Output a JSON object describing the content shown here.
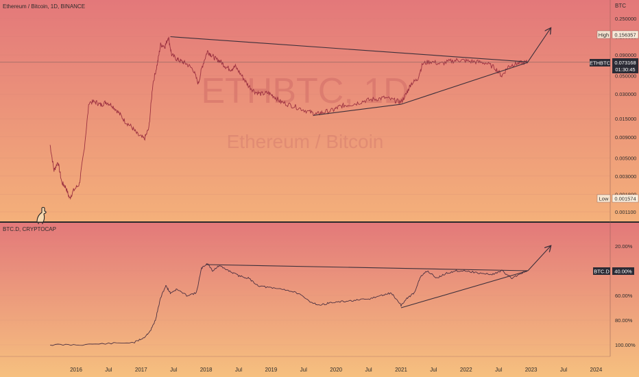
{
  "colors": {
    "top_bg_top": "#e3787a",
    "top_bg_bottom": "#f4b07a",
    "bottom_bg_top": "#e3797a",
    "bottom_bg_bottom": "#f6c07f",
    "price_line": "#9b3040",
    "index_line": "#4b3040",
    "trend_line": "#3b2f3a",
    "label_dark": "#2b2b35",
    "label_text": "#ffffff",
    "axis_text": "#2b2b2b",
    "separator": "#2a2a2a"
  },
  "top_panel": {
    "header": "Ethereum / Bitcoin, 1D, BINANCE",
    "axis_unit": "BTC",
    "watermark_symbol": "ETHBTC, 1D",
    "watermark_name": "Ethereum / Bitcoin",
    "high_tag": "High",
    "high_value": "0.156357",
    "low_tag": "Low",
    "low_value": "0.001574",
    "symbol_tag": "ETHBTC",
    "last_price": "0.073168",
    "countdown": "01:30:45",
    "mascot_icon": "dino-icon"
  },
  "bottom_panel": {
    "header": "BTC.D, CRYPTOCAP",
    "symbol_tag": "BTC.D",
    "last_value": "40.00%"
  },
  "chart_data": [
    {
      "type": "line",
      "title": "Ethereum / Bitcoin, 1D, BINANCE",
      "ylabel": "BTC",
      "y_scale": "log",
      "y_ticks": [
        "0.250000",
        "0.150000",
        "0.090000",
        "0.050000",
        "0.030000",
        "0.015000",
        "0.009000",
        "0.005000",
        "0.003000",
        "0.001800",
        "0.001100"
      ],
      "x_ticks": [
        "2016",
        "Jul",
        "2017",
        "Jul",
        "2018",
        "Jul",
        "2019",
        "Jul",
        "2020",
        "Jul",
        "2021",
        "Jul",
        "2022",
        "Jul",
        "2023",
        "Jul",
        "2024"
      ],
      "x": [
        2015.6,
        2015.66,
        2015.72,
        2015.78,
        2015.84,
        2015.9,
        2015.96,
        2016.05,
        2016.12,
        2016.2,
        2016.3,
        2016.38,
        2016.46,
        2016.55,
        2016.65,
        2016.75,
        2016.85,
        2016.95,
        2017.05,
        2017.12,
        2017.18,
        2017.25,
        2017.3,
        2017.37,
        2017.42,
        2017.47,
        2017.55,
        2017.62,
        2017.7,
        2017.8,
        2017.88,
        2017.94,
        2018.02,
        2018.08,
        2018.15,
        2018.22,
        2018.3,
        2018.38,
        2018.45,
        2018.55,
        2018.65,
        2018.75,
        2018.85,
        2018.95,
        2019.05,
        2019.15,
        2019.3,
        2019.45,
        2019.6,
        2019.7,
        2019.8,
        2019.95,
        2020.05,
        2020.15,
        2020.3,
        2020.45,
        2020.6,
        2020.75,
        2020.9,
        2021.0,
        2021.08,
        2021.15,
        2021.25,
        2021.33,
        2021.45,
        2021.6,
        2021.75,
        2021.88,
        2022.0,
        2022.15,
        2022.3,
        2022.45,
        2022.55,
        2022.65,
        2022.75,
        2022.85,
        2022.95
      ],
      "y": [
        0.0072,
        0.0035,
        0.0045,
        0.0025,
        0.0022,
        0.0016,
        0.002,
        0.0024,
        0.006,
        0.024,
        0.024,
        0.022,
        0.024,
        0.022,
        0.018,
        0.014,
        0.012,
        0.0095,
        0.0085,
        0.0115,
        0.04,
        0.07,
        0.12,
        0.115,
        0.15,
        0.09,
        0.08,
        0.075,
        0.07,
        0.06,
        0.04,
        0.065,
        0.1,
        0.09,
        0.08,
        0.075,
        0.065,
        0.06,
        0.065,
        0.05,
        0.038,
        0.032,
        0.03,
        0.031,
        0.028,
        0.024,
        0.022,
        0.02,
        0.018,
        0.017,
        0.018,
        0.019,
        0.021,
        0.022,
        0.023,
        0.025,
        0.026,
        0.027,
        0.025,
        0.024,
        0.03,
        0.04,
        0.045,
        0.07,
        0.075,
        0.07,
        0.075,
        0.078,
        0.076,
        0.074,
        0.072,
        0.062,
        0.05,
        0.065,
        0.07,
        0.072,
        0.073168
      ],
      "annotations": {
        "resistance": {
          "x": [
            2017.45,
            2022.95
          ],
          "y": [
            0.15,
            0.074
          ]
        },
        "support": {
          "x": [
            2019.65,
            2021.0,
            2022.95
          ],
          "y": [
            0.0165,
            0.0225,
            0.073
          ]
        },
        "breakout_arrow": {
          "x": [
            2022.95,
            2023.3
          ],
          "y": [
            0.074,
            0.19
          ]
        }
      }
    },
    {
      "type": "line",
      "title": "BTC.D, CRYPTOCAP",
      "y_scale": "inverted",
      "y_ticks": [
        "20.00%",
        "40.00%",
        "60.00%",
        "80.00%",
        "100.00%"
      ],
      "x": [
        2015.6,
        2016.0,
        2016.5,
        2016.9,
        2017.05,
        2017.15,
        2017.22,
        2017.3,
        2017.38,
        2017.45,
        2017.55,
        2017.7,
        2017.85,
        2017.93,
        2018.02,
        2018.1,
        2018.2,
        2018.35,
        2018.5,
        2018.65,
        2018.8,
        2019.0,
        2019.2,
        2019.4,
        2019.6,
        2019.75,
        2019.9,
        2020.1,
        2020.3,
        2020.5,
        2020.7,
        2020.85,
        2021.0,
        2021.1,
        2021.2,
        2021.3,
        2021.4,
        2021.55,
        2021.7,
        2021.85,
        2022.0,
        2022.2,
        2022.4,
        2022.55,
        2022.7,
        2022.85,
        2022.95
      ],
      "y": [
        100.0,
        100.0,
        99.0,
        98.0,
        94.0,
        88.0,
        80.0,
        62.0,
        52.0,
        58.0,
        55.0,
        60.0,
        58.0,
        38.0,
        34.0,
        40.0,
        36.0,
        40.0,
        44.0,
        46.0,
        52.0,
        54.0,
        55.0,
        58.0,
        65.0,
        68.0,
        66.0,
        65.0,
        64.0,
        63.0,
        60.0,
        58.0,
        68.0,
        62.0,
        58.0,
        45.0,
        40.0,
        46.0,
        42.0,
        40.0,
        40.0,
        42.0,
        43.0,
        40.0,
        46.0,
        42.0,
        40.0
      ],
      "annotations": {
        "resistance": {
          "x": [
            2018.0,
            2022.95
          ],
          "y": [
            35.0,
            40.0
          ]
        },
        "support": {
          "x": [
            2021.0,
            2022.95
          ],
          "y": [
            70.0,
            40.0
          ]
        },
        "breakout_arrow": {
          "x": [
            2022.95,
            2023.3
          ],
          "y": [
            40.0,
            20.0
          ]
        }
      }
    }
  ]
}
